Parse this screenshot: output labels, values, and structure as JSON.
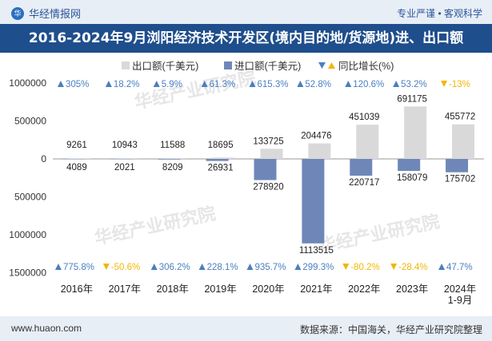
{
  "header": {
    "brand": "华经情报网",
    "tagline": "专业严谨 • 客观科学"
  },
  "title": "2016-2024年9月浏阳经济技术开发区(境内目的地/货源地)进、出口额",
  "footer": {
    "website": "www.huaon.com",
    "source": "数据来源：中国海关，华经产业研究院整理"
  },
  "chart_data": {
    "type": "bar",
    "categories": [
      "2016年",
      "2017年",
      "2018年",
      "2019年",
      "2020年",
      "2021年",
      "2022年",
      "2023年",
      "2024年\n1-9月"
    ],
    "legend": [
      "出口额(千美元)",
      "进口额(千美元)",
      "同比增长(%)"
    ],
    "series": [
      {
        "name": "出口额(千美元)",
        "values": [
          9261,
          10943,
          11588,
          18695,
          133725,
          204476,
          451039,
          691175,
          455772
        ],
        "growth": [
          "305%",
          "18.2%",
          "5.9%",
          "61.3%",
          "615.3%",
          "52.8%",
          "120.6%",
          "53.2%",
          "-13%"
        ],
        "color": "#d9d9d9"
      },
      {
        "name": "进口额(千美元)",
        "values": [
          4089,
          2021,
          8209,
          26931,
          278920,
          1113515,
          220717,
          158079,
          175702
        ],
        "growth": [
          "775.8%",
          "-50.6%",
          "306.2%",
          "228.1%",
          "935.7%",
          "299.3%",
          "-80.2%",
          "-28.4%",
          "47.7%"
        ],
        "color": "#6f87b8"
      }
    ],
    "y_tick_labels": [
      "1000000",
      "500000",
      "0",
      "500000",
      "1000000",
      "1500000"
    ],
    "y_tick_values": [
      1000000,
      500000,
      0,
      -500000,
      -1000000,
      -1500000
    ],
    "ylim": [
      -1500000,
      1000000
    ],
    "colors": {
      "up": "#4a7fc1",
      "down": "#f2b705",
      "axis": "#999999"
    },
    "watermark": "华经产业研究院"
  }
}
